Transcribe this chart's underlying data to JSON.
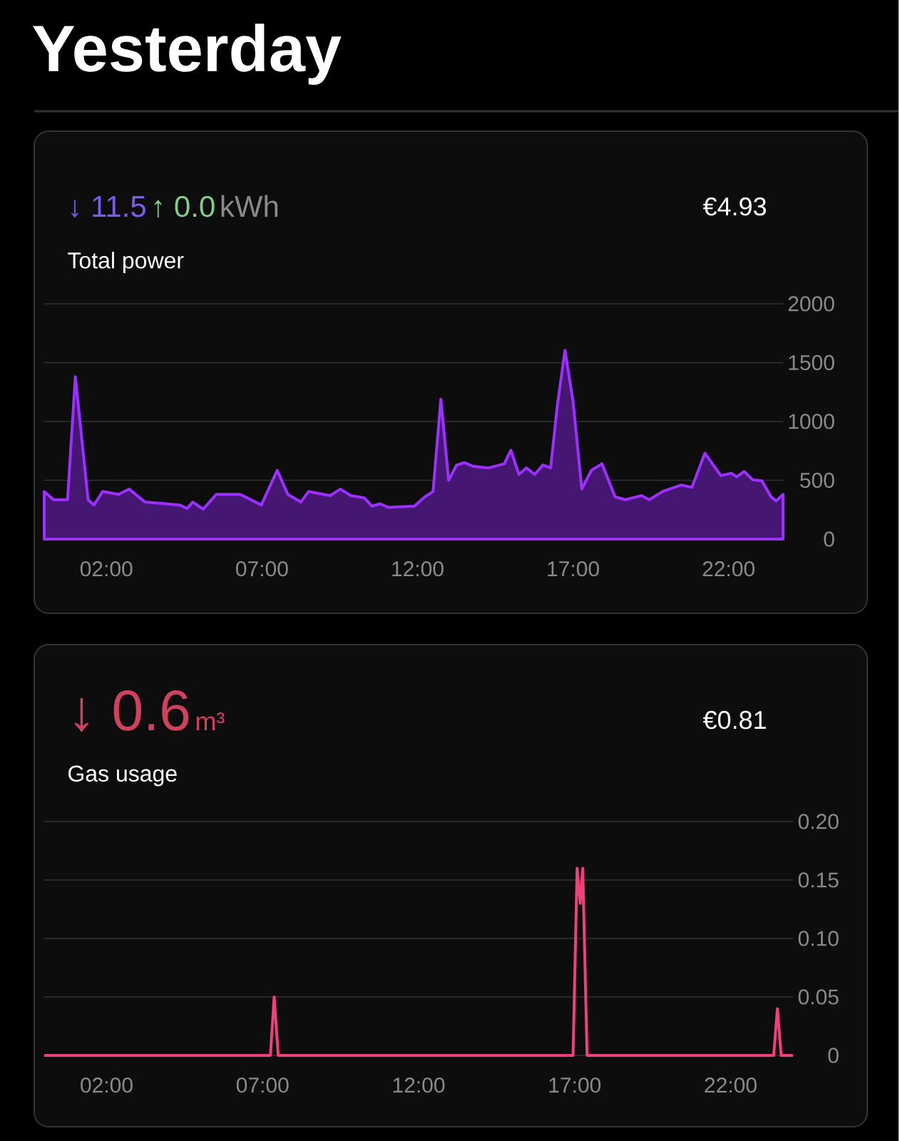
{
  "chart_data": [
    {
      "type": "area",
      "title": "Total power",
      "annotations": [
        "Yesterday",
        "↓ 11.5",
        "↑ 0.0",
        "kWh",
        "€4.93"
      ],
      "color": "#9b30ff",
      "x": [
        0,
        0.3,
        0.75,
        1.0,
        1.41,
        1.6,
        1.88,
        2.39,
        2.73,
        3.24,
        3.92,
        4.35,
        4.6,
        4.77,
        5.11,
        5.53,
        6.3,
        6.98,
        7.49,
        7.83,
        8.25,
        8.5,
        9.19,
        9.52,
        9.86,
        10.29,
        10.54,
        10.8,
        11.05,
        11.9,
        12.24,
        12.5,
        12.75,
        13.0,
        13.26,
        13.51,
        13.77,
        14.28,
        14.79,
        15.0,
        15.26,
        15.5,
        15.77,
        16.03,
        16.28,
        16.49,
        16.74,
        17.0,
        17.28,
        17.59,
        17.93,
        18.35,
        18.69,
        19.2,
        19.45,
        19.88,
        20.48,
        20.82,
        21.24,
        21.75,
        22.09,
        22.26,
        22.5,
        22.77,
        23.07,
        23.36,
        23.53,
        23.75
      ],
      "values": [
        405,
        335,
        335,
        1380,
        335,
        290,
        405,
        380,
        425,
        315,
        300,
        290,
        260,
        315,
        255,
        380,
        380,
        290,
        585,
        380,
        315,
        405,
        370,
        425,
        370,
        350,
        280,
        300,
        270,
        280,
        360,
        405,
        1190,
        500,
        630,
        650,
        620,
        605,
        640,
        755,
        550,
        605,
        550,
        630,
        605,
        1125,
        1605,
        1170,
        425,
        585,
        640,
        360,
        335,
        370,
        335,
        405,
        460,
        440,
        730,
        540,
        560,
        530,
        575,
        505,
        495,
        360,
        325,
        380
      ],
      "xlim": [
        0,
        23.75
      ],
      "ylim": [
        0,
        2000
      ],
      "xticks": [
        {
          "value": 2,
          "label": "02:00"
        },
        {
          "value": 7,
          "label": "07:00"
        },
        {
          "value": 12,
          "label": "12:00"
        },
        {
          "value": 17,
          "label": "17:00"
        },
        {
          "value": 22,
          "label": "22:00"
        }
      ],
      "yticks": [
        0,
        500,
        1000,
        1500,
        2000
      ],
      "grid": "y"
    },
    {
      "type": "line",
      "title": "Gas usage",
      "annotations": [
        "↓ 0.6",
        "m³",
        "€0.81"
      ],
      "color": "#f0407a",
      "x": [
        0,
        7.25,
        7.37,
        7.5,
        16.95,
        17.08,
        17.18,
        17.26,
        17.4,
        23.38,
        23.5,
        23.62,
        24
      ],
      "values": [
        0,
        0,
        0.05,
        0,
        0,
        0.16,
        0.13,
        0.16,
        0,
        0,
        0.04,
        0,
        0
      ],
      "xlim": [
        0,
        24
      ],
      "ylim": [
        0,
        0.2
      ],
      "xticks": [
        {
          "value": 2,
          "label": "02:00"
        },
        {
          "value": 7,
          "label": "07:00"
        },
        {
          "value": 12,
          "label": "12:00"
        },
        {
          "value": 17,
          "label": "17:00"
        },
        {
          "value": 22,
          "label": "22:00"
        }
      ],
      "yticks": [
        0,
        {
          "value": 0.05,
          "label": "0.05"
        },
        {
          "value": 0.1,
          "label": "0.10"
        },
        {
          "value": 0.15,
          "label": "0.15"
        },
        {
          "value": 0.2,
          "label": "0.20"
        }
      ],
      "grid": "y"
    }
  ]
}
